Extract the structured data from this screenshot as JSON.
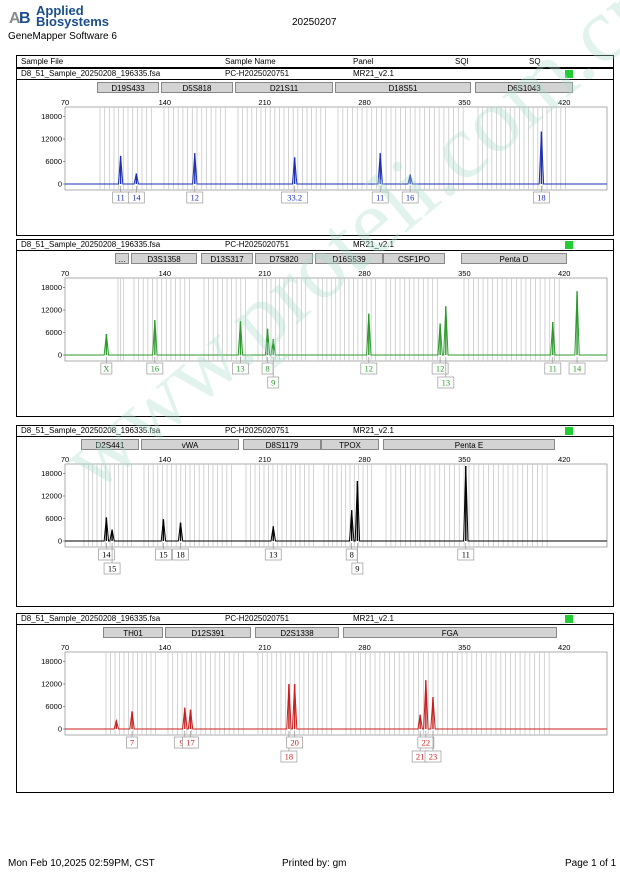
{
  "header": {
    "brand_line1": "Applied",
    "brand_line2": "Biosystems",
    "software": "GeneMapper Software 6",
    "date": "20250207"
  },
  "columns": {
    "sample_file": "Sample File",
    "sample_name": "Sample Name",
    "panel": "Panel",
    "sqi": "SQI",
    "sq": "SQ"
  },
  "footer": {
    "printed_at": "Mon Feb 10,2025 02:59PM, CST",
    "printed_by": "Printed by: gm",
    "page": "Page 1 of 1"
  },
  "watermark": "www.proteli.com.cn",
  "colors": {
    "blue": "#1c2fb6",
    "green": "#2a9a2a",
    "black": "#000000",
    "red": "#c81e1e",
    "sq_ok": "#22cc33"
  },
  "axis": {
    "x_ticks": [
      "70",
      "140",
      "210",
      "280",
      "350",
      "420"
    ],
    "y_ticks": [
      "18000",
      "12000",
      "6000",
      "0"
    ]
  },
  "chart_data": [
    {
      "type": "line",
      "dye": "blue",
      "file": "D8_51_Sample_20250208_196335.fsa",
      "sample_name": "PC-H2025020751",
      "panel": "MR21_v2.1",
      "markers": [
        "D19S433",
        "D5S818",
        "D21S11",
        "D18S51",
        "D6S1043"
      ],
      "x_ticks": [
        70,
        140,
        210,
        280,
        350,
        420
      ],
      "y_ticks": [
        0,
        6000,
        12000,
        18000
      ],
      "peaks": [
        {
          "x": 109,
          "h": 7500
        },
        {
          "x": 120,
          "h": 2800
        },
        {
          "x": 161,
          "h": 8200
        },
        {
          "x": 231,
          "h": 7100
        },
        {
          "x": 291,
          "h": 8200
        },
        {
          "x": 312,
          "h": 2500
        },
        {
          "x": 404,
          "h": 14000
        }
      ],
      "alleles": [
        "11",
        "14",
        "12",
        "33.2",
        "11",
        "16",
        "18"
      ]
    },
    {
      "type": "line",
      "dye": "green",
      "file": "D8_51_Sample_20250208_196335.fsa",
      "sample_name": "PC-H2025020751",
      "panel": "MR21_v2.1",
      "markers": [
        "...",
        "D3S1358",
        "D13S317",
        "D7S820",
        "D16S539",
        "CSF1PO",
        "Penta D"
      ],
      "x_ticks": [
        70,
        140,
        210,
        280,
        350,
        420
      ],
      "y_ticks": [
        0,
        6000,
        12000,
        18000
      ],
      "peaks": [
        {
          "x": 99,
          "h": 5600
        },
        {
          "x": 133,
          "h": 9300
        },
        {
          "x": 193,
          "h": 9000
        },
        {
          "x": 212,
          "h": 7000
        },
        {
          "x": 216,
          "h": 4200
        },
        {
          "x": 283,
          "h": 11000
        },
        {
          "x": 333,
          "h": 8400
        },
        {
          "x": 337,
          "h": 13000
        },
        {
          "x": 412,
          "h": 8800
        },
        {
          "x": 429,
          "h": 17000
        }
      ],
      "alleles": [
        "X",
        "16",
        "13",
        "8",
        "9",
        "12",
        "12",
        "13",
        "11",
        "14"
      ]
    },
    {
      "type": "line",
      "dye": "black",
      "file": "D8_51_Sample_20250208_196335.fsa",
      "sample_name": "PC-H2025020751",
      "panel": "MR21_v2.1",
      "markers": [
        "D2S441",
        "vWA",
        "D8S1179",
        "TPOX",
        "Penta E"
      ],
      "x_ticks": [
        70,
        140,
        210,
        280,
        350,
        420
      ],
      "y_ticks": [
        0,
        6000,
        12000,
        18000
      ],
      "peaks": [
        {
          "x": 99,
          "h": 6300
        },
        {
          "x": 103,
          "h": 3000
        },
        {
          "x": 139,
          "h": 5800
        },
        {
          "x": 151,
          "h": 4900
        },
        {
          "x": 216,
          "h": 3900
        },
        {
          "x": 271,
          "h": 8200
        },
        {
          "x": 275,
          "h": 16000
        },
        {
          "x": 351,
          "h": 20000
        }
      ],
      "alleles": [
        "14",
        "15",
        "15",
        "18",
        "13",
        "8",
        "9",
        "11"
      ]
    },
    {
      "type": "line",
      "dye": "red",
      "file": "D8_51_Sample_20250208_196335.fsa",
      "sample_name": "PC-H2025020751",
      "panel": "MR21_v2.1",
      "markers": [
        "TH01",
        "D12S391",
        "D2S1338",
        "FGA"
      ],
      "x_ticks": [
        70,
        140,
        210,
        280,
        350,
        420
      ],
      "y_ticks": [
        0,
        6000,
        12000,
        18000
      ],
      "peaks": [
        {
          "x": 106,
          "h": 2200
        },
        {
          "x": 117,
          "h": 4700
        },
        {
          "x": 154,
          "h": 5700
        },
        {
          "x": 158,
          "h": 5200
        },
        {
          "x": 227,
          "h": 12000
        },
        {
          "x": 231,
          "h": 12000
        },
        {
          "x": 319,
          "h": 3800
        },
        {
          "x": 323,
          "h": 13000
        },
        {
          "x": 328,
          "h": 8500
        }
      ],
      "alleles": [
        "7",
        "9.3",
        "17",
        "18",
        "20",
        "21",
        "22",
        "23"
      ]
    }
  ]
}
